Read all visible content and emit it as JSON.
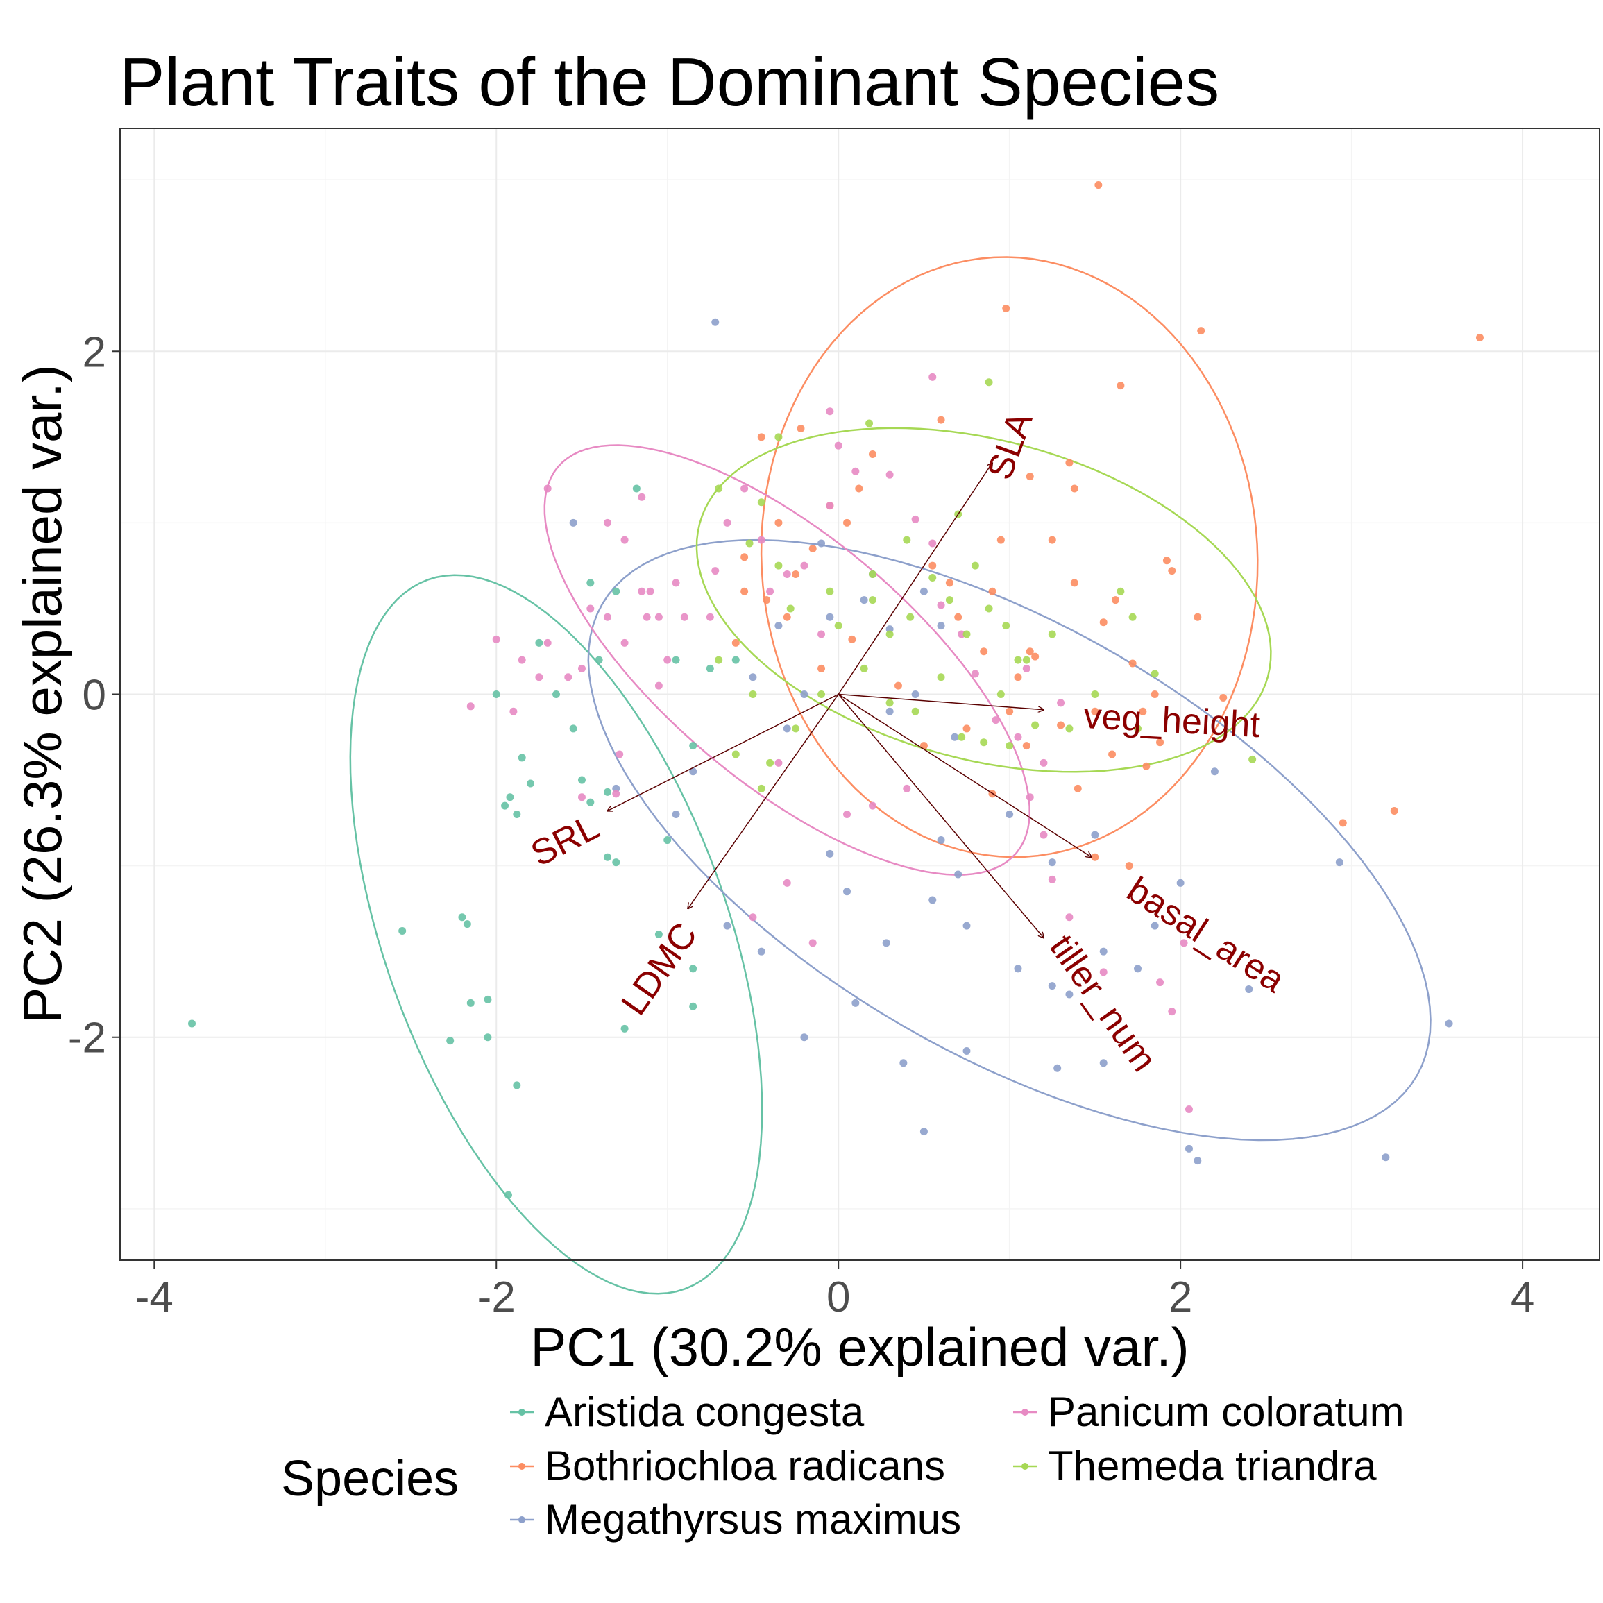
{
  "chart_data": {
    "type": "scatter",
    "title": "Plant Traits of the Dominant Species",
    "xlabel": "PC1 (30.2% explained var.)",
    "ylabel": "PC2 (26.3% explained var.)",
    "xlim": [
      -4.2,
      4.45
    ],
    "ylim": [
      -3.3,
      3.3
    ],
    "x_ticks": [
      "-4",
      "-2",
      "0",
      "2",
      "4"
    ],
    "y_ticks": [
      "-2",
      "0",
      "2"
    ],
    "x_tick_values": [
      -4,
      -2,
      0,
      2,
      4
    ],
    "y_tick_values": [
      -2,
      0,
      2
    ],
    "grid": true,
    "legend": {
      "title": "Species",
      "position": "bottom",
      "items": [
        "Aristida congesta",
        "Bothriochloa radicans",
        "Megathyrsus maximus",
        "Panicum coloratum",
        "Themeda triandra"
      ]
    },
    "series": [
      {
        "name": "Aristida congesta",
        "color": "#66c2a5",
        "ellipse": {
          "cx": -1.65,
          "cy": -1.4,
          "rx": 1.0,
          "ry": 2.2,
          "angle_deg": 20
        },
        "points": [
          [
            -3.78,
            -1.92
          ],
          [
            -2.55,
            -1.38
          ],
          [
            -2.2,
            -1.3
          ],
          [
            -2.17,
            -1.34
          ],
          [
            -2.15,
            -1.8
          ],
          [
            -2.05,
            -1.78
          ],
          [
            -2.05,
            -2.0
          ],
          [
            -2.27,
            -2.02
          ],
          [
            -1.88,
            -2.28
          ],
          [
            -1.93,
            -2.92
          ],
          [
            -1.85,
            -0.37
          ],
          [
            -1.8,
            -0.52
          ],
          [
            -1.92,
            -0.6
          ],
          [
            -1.95,
            -0.65
          ],
          [
            -1.88,
            -0.7
          ],
          [
            -1.5,
            -0.5
          ],
          [
            -1.45,
            -0.63
          ],
          [
            -1.35,
            -0.57
          ],
          [
            -1.35,
            -0.95
          ],
          [
            -1.3,
            -0.98
          ],
          [
            -1.4,
            0.2
          ],
          [
            -1.55,
            -0.2
          ],
          [
            -1.65,
            0.0
          ],
          [
            -1.45,
            0.65
          ],
          [
            -1.3,
            0.6
          ],
          [
            -1.18,
            1.2
          ],
          [
            -1.05,
            -1.4
          ],
          [
            -1.0,
            -0.85
          ],
          [
            -0.95,
            0.2
          ],
          [
            -0.85,
            -1.6
          ],
          [
            -0.85,
            -1.82
          ],
          [
            -0.75,
            0.15
          ],
          [
            -1.75,
            0.3
          ],
          [
            -2.0,
            0.0
          ],
          [
            -1.25,
            -1.95
          ],
          [
            -0.85,
            -0.3
          ],
          [
            -0.6,
            0.2
          ]
        ]
      },
      {
        "name": "Bothriochloa radicans",
        "color": "#fc8d62",
        "ellipse": {
          "cx": 1.0,
          "cy": 0.8,
          "rx": 1.45,
          "ry": 1.75,
          "angle_deg": 3
        },
        "points": [
          [
            1.52,
            2.97
          ],
          [
            0.98,
            2.25
          ],
          [
            2.12,
            2.12
          ],
          [
            3.75,
            2.08
          ],
          [
            1.65,
            1.8
          ],
          [
            1.35,
            1.35
          ],
          [
            1.38,
            1.2
          ],
          [
            1.25,
            0.9
          ],
          [
            1.12,
            1.27
          ],
          [
            0.6,
            1.6
          ],
          [
            0.2,
            1.4
          ],
          [
            0.12,
            1.2
          ],
          [
            0.05,
            1.0
          ],
          [
            -0.05,
            1.1
          ],
          [
            -0.15,
            0.85
          ],
          [
            -0.22,
            1.55
          ],
          [
            -0.35,
            1.0
          ],
          [
            -0.45,
            1.5
          ],
          [
            -0.25,
            0.7
          ],
          [
            -0.42,
            0.55
          ],
          [
            -0.55,
            0.8
          ],
          [
            -0.55,
            0.6
          ],
          [
            -0.6,
            0.3
          ],
          [
            -0.3,
            0.45
          ],
          [
            -0.1,
            0.15
          ],
          [
            0.08,
            0.32
          ],
          [
            0.35,
            0.05
          ],
          [
            0.5,
            -0.3
          ],
          [
            1.1,
            -0.3
          ],
          [
            1.12,
            0.25
          ],
          [
            1.3,
            -0.18
          ],
          [
            1.5,
            -0.1
          ],
          [
            1.6,
            -0.35
          ],
          [
            1.72,
            0.18
          ],
          [
            1.78,
            -0.1
          ],
          [
            1.88,
            -0.28
          ],
          [
            1.95,
            0.72
          ],
          [
            1.92,
            0.78
          ],
          [
            2.1,
            0.45
          ],
          [
            1.85,
            0.0
          ],
          [
            2.25,
            -0.02
          ],
          [
            1.4,
            -0.55
          ],
          [
            1.55,
            0.42
          ],
          [
            1.15,
            0.22
          ],
          [
            0.7,
            0.45
          ],
          [
            0.85,
            0.25
          ],
          [
            1.05,
            0.1
          ],
          [
            1.38,
            0.65
          ],
          [
            1.62,
            0.55
          ],
          [
            0.55,
            0.75
          ],
          [
            0.9,
            0.6
          ],
          [
            1.0,
            -0.1
          ],
          [
            3.25,
            -0.68
          ],
          [
            2.95,
            -0.75
          ],
          [
            1.7,
            -1.0
          ],
          [
            1.5,
            -0.95
          ],
          [
            0.9,
            -0.58
          ],
          [
            0.75,
            -0.2
          ],
          [
            0.65,
            0.65
          ],
          [
            0.95,
            0.9
          ],
          [
            1.8,
            -0.42
          ]
        ]
      },
      {
        "name": "Megathyrsus maximus",
        "color": "#8da0cb",
        "ellipse": {
          "cx": 1.0,
          "cy": -0.85,
          "rx": 2.75,
          "ry": 1.25,
          "angle_deg": -30
        },
        "points": [
          [
            -0.72,
            2.17
          ],
          [
            -1.55,
            1.0
          ],
          [
            -0.1,
            0.88
          ],
          [
            0.2,
            0.7
          ],
          [
            -0.05,
            0.45
          ],
          [
            0.3,
            0.38
          ],
          [
            0.5,
            0.6
          ],
          [
            0.6,
            0.4
          ],
          [
            0.15,
            0.55
          ],
          [
            -0.35,
            0.4
          ],
          [
            -0.5,
            0.1
          ],
          [
            -0.2,
            0.0
          ],
          [
            -0.85,
            -0.45
          ],
          [
            -0.95,
            -0.7
          ],
          [
            -1.3,
            -0.55
          ],
          [
            -0.05,
            -0.93
          ],
          [
            0.05,
            -1.15
          ],
          [
            0.7,
            -1.05
          ],
          [
            0.28,
            -1.45
          ],
          [
            0.75,
            -1.35
          ],
          [
            1.05,
            -1.6
          ],
          [
            1.25,
            -1.7
          ],
          [
            1.35,
            -1.75
          ],
          [
            1.55,
            -1.5
          ],
          [
            1.75,
            -1.6
          ],
          [
            0.1,
            -1.8
          ],
          [
            -0.2,
            -2.0
          ],
          [
            0.38,
            -2.15
          ],
          [
            0.5,
            -2.55
          ],
          [
            0.75,
            -2.08
          ],
          [
            1.28,
            -2.18
          ],
          [
            1.55,
            -2.15
          ],
          [
            2.05,
            -2.65
          ],
          [
            2.1,
            -2.72
          ],
          [
            3.2,
            -2.7
          ],
          [
            3.57,
            -1.92
          ],
          [
            2.93,
            -0.98
          ],
          [
            2.4,
            -1.72
          ],
          [
            1.5,
            -0.82
          ],
          [
            1.25,
            -0.98
          ],
          [
            0.68,
            -0.25
          ],
          [
            0.45,
            0.0
          ],
          [
            0.3,
            -0.1
          ],
          [
            -0.3,
            -0.2
          ],
          [
            2.2,
            -0.45
          ],
          [
            2.0,
            -1.1
          ],
          [
            1.85,
            -1.35
          ],
          [
            -0.45,
            -1.5
          ],
          [
            -0.65,
            -1.35
          ],
          [
            0.55,
            -1.2
          ],
          [
            0.6,
            -0.85
          ],
          [
            1.0,
            -0.7
          ]
        ]
      },
      {
        "name": "Panicum coloratum",
        "color": "#e78ac3",
        "ellipse": {
          "cx": -0.3,
          "cy": 0.2,
          "rx": 1.75,
          "ry": 0.72,
          "angle_deg": -40
        },
        "points": [
          [
            -2.0,
            0.32
          ],
          [
            -2.15,
            -0.07
          ],
          [
            -1.85,
            0.2
          ],
          [
            -1.75,
            0.1
          ],
          [
            -1.58,
            0.1
          ],
          [
            -1.5,
            0.15
          ],
          [
            -1.35,
            0.45
          ],
          [
            -1.25,
            0.3
          ],
          [
            -1.15,
            0.6
          ],
          [
            -1.12,
            0.45
          ],
          [
            -1.05,
            0.45
          ],
          [
            -1.0,
            0.2
          ],
          [
            -1.05,
            0.05
          ],
          [
            -1.28,
            -0.35
          ],
          [
            -1.3,
            -0.58
          ],
          [
            -1.5,
            -0.6
          ],
          [
            -1.45,
            0.5
          ],
          [
            -1.35,
            1.0
          ],
          [
            -1.25,
            0.9
          ],
          [
            -1.1,
            0.6
          ],
          [
            -0.95,
            0.65
          ],
          [
            -0.9,
            0.45
          ],
          [
            -0.72,
            0.72
          ],
          [
            -0.65,
            1.0
          ],
          [
            -0.55,
            1.2
          ],
          [
            -0.45,
            0.9
          ],
          [
            -0.4,
            0.6
          ],
          [
            -0.3,
            0.7
          ],
          [
            -0.2,
            0.75
          ],
          [
            -0.1,
            0.35
          ],
          [
            -0.05,
            1.1
          ],
          [
            -0.05,
            1.65
          ],
          [
            0.0,
            1.45
          ],
          [
            0.1,
            1.3
          ],
          [
            0.3,
            1.28
          ],
          [
            0.45,
            1.02
          ],
          [
            0.55,
            0.88
          ],
          [
            0.6,
            0.52
          ],
          [
            0.72,
            0.35
          ],
          [
            0.8,
            0.12
          ],
          [
            0.92,
            -0.15
          ],
          [
            1.05,
            -0.25
          ],
          [
            1.12,
            -0.6
          ],
          [
            1.2,
            -0.82
          ],
          [
            1.25,
            -1.08
          ],
          [
            1.35,
            -1.3
          ],
          [
            1.55,
            -1.62
          ],
          [
            1.88,
            -1.68
          ],
          [
            1.95,
            -1.85
          ],
          [
            2.02,
            -1.45
          ],
          [
            2.05,
            -2.42
          ],
          [
            1.2,
            -0.4
          ],
          [
            1.3,
            -0.05
          ],
          [
            0.55,
            1.85
          ],
          [
            0.2,
            -0.65
          ],
          [
            -0.5,
            -1.3
          ],
          [
            -0.3,
            -1.1
          ],
          [
            -0.15,
            -1.45
          ],
          [
            0.05,
            -0.7
          ],
          [
            -0.35,
            -0.4
          ],
          [
            -1.7,
            0.3
          ],
          [
            -1.9,
            -0.1
          ],
          [
            -1.15,
            1.15
          ],
          [
            -1.7,
            1.2
          ],
          [
            0.4,
            -0.55
          ],
          [
            1.1,
            0.15
          ],
          [
            -0.75,
            0.45
          ]
        ]
      },
      {
        "name": "Themeda triandra",
        "color": "#a6d854",
        "ellipse": {
          "cx": 0.85,
          "cy": 0.55,
          "rx": 1.72,
          "ry": 0.93,
          "angle_deg": -15
        },
        "points": [
          [
            0.88,
            1.82
          ],
          [
            0.18,
            1.58
          ],
          [
            -0.35,
            1.5
          ],
          [
            -0.7,
            1.2
          ],
          [
            -0.52,
            0.88
          ],
          [
            -0.45,
            1.12
          ],
          [
            -0.35,
            0.75
          ],
          [
            -0.28,
            0.5
          ],
          [
            -0.05,
            0.6
          ],
          [
            0.2,
            0.55
          ],
          [
            0.42,
            0.45
          ],
          [
            0.55,
            0.68
          ],
          [
            0.65,
            0.55
          ],
          [
            0.75,
            0.35
          ],
          [
            0.88,
            0.5
          ],
          [
            0.98,
            0.4
          ],
          [
            1.05,
            0.2
          ],
          [
            1.1,
            0.2
          ],
          [
            0.95,
            0.0
          ],
          [
            0.85,
            -0.28
          ],
          [
            0.72,
            -0.25
          ],
          [
            0.45,
            -0.1
          ],
          [
            0.3,
            -0.05
          ],
          [
            -0.1,
            0.0
          ],
          [
            -0.25,
            -0.2
          ],
          [
            -0.4,
            -0.4
          ],
          [
            -0.45,
            -0.55
          ],
          [
            -0.6,
            -0.35
          ],
          [
            -0.5,
            0.0
          ],
          [
            -0.7,
            0.2
          ],
          [
            0.0,
            0.4
          ],
          [
            0.15,
            0.15
          ],
          [
            1.85,
            0.12
          ],
          [
            1.75,
            -0.2
          ],
          [
            2.42,
            -0.38
          ],
          [
            1.15,
            -0.18
          ],
          [
            1.0,
            -0.3
          ],
          [
            0.6,
            0.1
          ],
          [
            0.3,
            0.35
          ],
          [
            1.5,
            0.0
          ],
          [
            1.35,
            -0.2
          ],
          [
            0.8,
            0.75
          ],
          [
            1.25,
            0.35
          ],
          [
            0.4,
            0.9
          ],
          [
            0.7,
            1.05
          ],
          [
            0.2,
            0.7
          ],
          [
            1.65,
            0.6
          ],
          [
            1.72,
            0.45
          ]
        ]
      }
    ],
    "loadings": [
      {
        "label": "SLA",
        "x": 0.9,
        "y": 1.35
      },
      {
        "label": "veg_height",
        "x": 1.2,
        "y": -0.09
      },
      {
        "label": "SRL",
        "x": -1.35,
        "y": -0.68
      },
      {
        "label": "LDMC",
        "x": -0.88,
        "y": -1.25
      },
      {
        "label": "basal_area",
        "x": 1.48,
        "y": -0.95
      },
      {
        "label": "tiller_num",
        "x": 1.2,
        "y": -1.42
      }
    ]
  }
}
